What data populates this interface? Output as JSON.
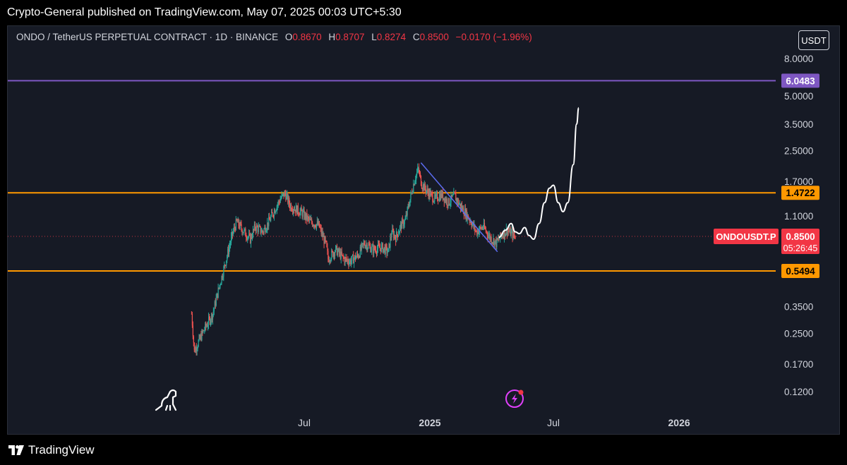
{
  "publish": {
    "text": "Crypto-General published on TradingView.com, May 07, 2025 00:03 UTC+5:30"
  },
  "header": {
    "symbol_label": "ONDO / TetherUS PERPETUAL CONTRACT · 1D · BINANCE",
    "open_key": "O",
    "open": "0.8670",
    "high_key": "H",
    "high": "0.8707",
    "low_key": "L",
    "low": "0.8274",
    "close_key": "C",
    "close": "0.8500",
    "change": "−0.0170 (−1.96%)"
  },
  "currency_button": "USDT",
  "footer": {
    "brand": "TradingView"
  },
  "colors": {
    "background": "#161a25",
    "up": "#26a69a",
    "down": "#ef5350",
    "resistance": "#ff9800",
    "target": "#7e57c2",
    "trendline": "#5b6cf0",
    "price_badge": "#f23645"
  },
  "icons": [
    "dino-icon",
    "lightning-icon",
    "tradingview-logo-icon"
  ],
  "chart_data": {
    "type": "candlestick",
    "symbol": "ONDOUSDT.P",
    "scale": "log",
    "x_ticks": [
      "Jul",
      "2025",
      "Jul",
      "2026"
    ],
    "y_ticks": [
      8.0,
      5.0,
      3.5,
      2.5,
      1.7,
      1.1,
      0.35,
      0.25,
      0.17,
      0.12
    ],
    "y_tick_labels": [
      "8.0000",
      "5.0000",
      "3.5000",
      "2.5000",
      "1.7000",
      "1.1000",
      "0.3500",
      "0.2500",
      "0.1700",
      "0.1200"
    ],
    "ylim": [
      0.1,
      10.5
    ],
    "levels": [
      {
        "label": "6.0483",
        "value": 6.0483,
        "color": "#7e57c2"
      },
      {
        "label": "1.4722",
        "value": 1.4722,
        "color": "#ff9800"
      },
      {
        "label": "0.5494",
        "value": 0.5494,
        "color": "#ff9800"
      }
    ],
    "current_price": {
      "symbol_label": "ONDOUSDT.P",
      "price": "0.8500",
      "countdown": "05:26:45",
      "value": 0.85
    },
    "trendline": {
      "from": [
        "2024-12-19",
        2.15
      ],
      "to": [
        "2025-04-10",
        0.7
      ]
    },
    "price_path": [
      [
        "2024-01-18",
        0.32
      ],
      [
        "2024-01-22",
        0.2
      ],
      [
        "2024-02-05",
        0.26
      ],
      [
        "2024-02-18",
        0.32
      ],
      [
        "2024-02-28",
        0.46
      ],
      [
        "2024-03-08",
        0.62
      ],
      [
        "2024-03-18",
        0.88
      ],
      [
        "2024-03-24",
        1.02
      ],
      [
        "2024-04-02",
        0.92
      ],
      [
        "2024-04-13",
        0.82
      ],
      [
        "2024-04-20",
        0.96
      ],
      [
        "2024-05-01",
        0.9
      ],
      [
        "2024-05-10",
        1.02
      ],
      [
        "2024-05-20",
        1.22
      ],
      [
        "2024-05-28",
        1.38
      ],
      [
        "2024-06-03",
        1.46
      ],
      [
        "2024-06-10",
        1.26
      ],
      [
        "2024-06-18",
        1.2
      ],
      [
        "2024-06-28",
        1.14
      ],
      [
        "2024-07-10",
        1.02
      ],
      [
        "2024-07-22",
        0.98
      ],
      [
        "2024-08-02",
        0.76
      ],
      [
        "2024-08-05",
        0.64
      ],
      [
        "2024-08-16",
        0.72
      ],
      [
        "2024-08-28",
        0.64
      ],
      [
        "2024-09-06",
        0.62
      ],
      [
        "2024-09-18",
        0.67
      ],
      [
        "2024-09-27",
        0.78
      ],
      [
        "2024-10-10",
        0.72
      ],
      [
        "2024-10-22",
        0.74
      ],
      [
        "2024-11-01",
        0.7
      ],
      [
        "2024-11-06",
        0.9
      ],
      [
        "2024-11-12",
        0.84
      ],
      [
        "2024-11-20",
        0.98
      ],
      [
        "2024-11-26",
        1.04
      ],
      [
        "2024-12-03",
        1.36
      ],
      [
        "2024-12-10",
        1.76
      ],
      [
        "2024-12-15",
        1.98
      ],
      [
        "2024-12-20",
        1.64
      ],
      [
        "2024-12-28",
        1.5
      ],
      [
        "2025-01-08",
        1.36
      ],
      [
        "2025-01-18",
        1.44
      ],
      [
        "2025-01-28",
        1.3
      ],
      [
        "2025-02-06",
        1.42
      ],
      [
        "2025-02-15",
        1.24
      ],
      [
        "2025-02-28",
        1.06
      ],
      [
        "2025-03-10",
        0.9
      ],
      [
        "2025-03-20",
        0.96
      ],
      [
        "2025-03-30",
        0.84
      ],
      [
        "2025-04-08",
        0.78
      ],
      [
        "2025-04-16",
        0.86
      ],
      [
        "2025-04-24",
        0.92
      ],
      [
        "2025-05-06",
        0.85
      ]
    ],
    "projection": [
      [
        "2025-04-12",
        0.84
      ],
      [
        "2025-04-22",
        0.92
      ],
      [
        "2025-04-30",
        1.0
      ],
      [
        "2025-05-06",
        0.9
      ],
      [
        "2025-05-12",
        0.88
      ],
      [
        "2025-05-20",
        0.95
      ],
      [
        "2025-05-26",
        0.86
      ],
      [
        "2025-06-02",
        0.82
      ],
      [
        "2025-06-10",
        1.0
      ],
      [
        "2025-06-18",
        1.3
      ],
      [
        "2025-06-25",
        1.56
      ],
      [
        "2025-07-01",
        1.62
      ],
      [
        "2025-07-08",
        1.3
      ],
      [
        "2025-07-15",
        1.16
      ],
      [
        "2025-07-22",
        1.3
      ],
      [
        "2025-07-30",
        2.1
      ],
      [
        "2025-08-04",
        3.5
      ],
      [
        "2025-08-07",
        4.3
      ]
    ]
  }
}
